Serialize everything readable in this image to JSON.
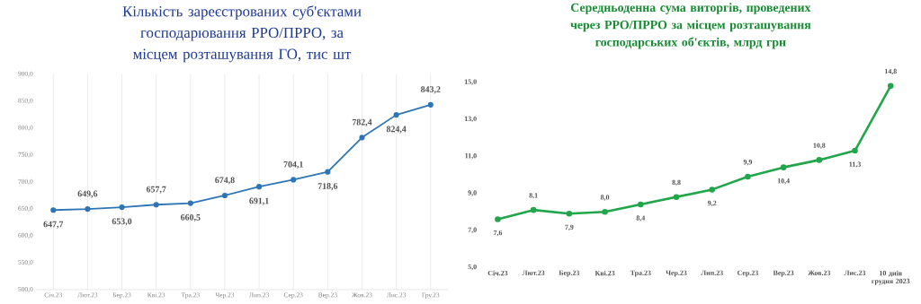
{
  "chart_data": [
    {
      "type": "line",
      "title": "Кількість зареєстрованих суб'єктами господарювання РРО/ПРРО, за місцем розташування ГО, тис шт",
      "categories": [
        "Січ.23",
        "Лют.23",
        "Бер.23",
        "Кві.23",
        "Тра.23",
        "Чер.23",
        "Лип.23",
        "Сер.23",
        "Вер.23",
        "Жов.23",
        "Лис.23",
        "Гру.23"
      ],
      "values": [
        647.7,
        649.6,
        653.0,
        657.7,
        660.5,
        674.8,
        691.1,
        704.1,
        718.6,
        782.4,
        824.4,
        843.2
      ],
      "value_labels": [
        "647,7",
        "649,6",
        "653,0",
        "657,7",
        "660,5",
        "674,8",
        "691,1",
        "704,1",
        "718,6",
        "782,4",
        "824,4",
        "843,2"
      ],
      "color": "#2e75b6",
      "marker": "circle",
      "grid": "x",
      "ylim": [
        500,
        900
      ],
      "yticks": [
        {
          "value": 500,
          "label": "500,0"
        },
        {
          "value": 550,
          "label": "550,0"
        },
        {
          "value": 600,
          "label": "600,0"
        },
        {
          "value": 650,
          "label": "650,0"
        },
        {
          "value": 700,
          "label": "700,0"
        },
        {
          "value": 750,
          "label": "750,0"
        },
        {
          "value": 800,
          "label": "800,0"
        },
        {
          "value": 850,
          "label": "850,0"
        },
        {
          "value": 900,
          "label": "900,0"
        }
      ]
    },
    {
      "type": "line",
      "title": "Середньоденна сума виторгів, проведених через РРО/ПРРО за місцем розташування господарських об'єктів, млрд грн",
      "categories": [
        "Січ.23",
        "Лют.23",
        "Бер.23",
        "Кві.23",
        "Тра.23",
        "Чер.23",
        "Лип.23",
        "Сер.23",
        "Вер.23",
        "Жов.23",
        "Лис.23",
        "10 днів грудня 2023"
      ],
      "values": [
        7.6,
        8.1,
        7.9,
        8.0,
        8.4,
        8.8,
        9.2,
        9.9,
        10.4,
        10.8,
        11.3,
        14.8
      ],
      "value_labels": [
        "7,6",
        "8,1",
        "7,9",
        "8,0",
        "8,4",
        "8,8",
        "9,2",
        "9,9",
        "10,4",
        "10,8",
        "11,3",
        "14,8"
      ],
      "color": "#21a64b",
      "marker": "circle",
      "ylim": [
        5,
        15
      ],
      "yticks": [
        {
          "value": 5,
          "label": "5,0"
        },
        {
          "value": 7,
          "label": "7,0"
        },
        {
          "value": 9,
          "label": "9,0"
        },
        {
          "value": 11,
          "label": "11,0"
        },
        {
          "value": 13,
          "label": "13,0"
        },
        {
          "value": 15,
          "label": "15,0"
        }
      ]
    }
  ]
}
